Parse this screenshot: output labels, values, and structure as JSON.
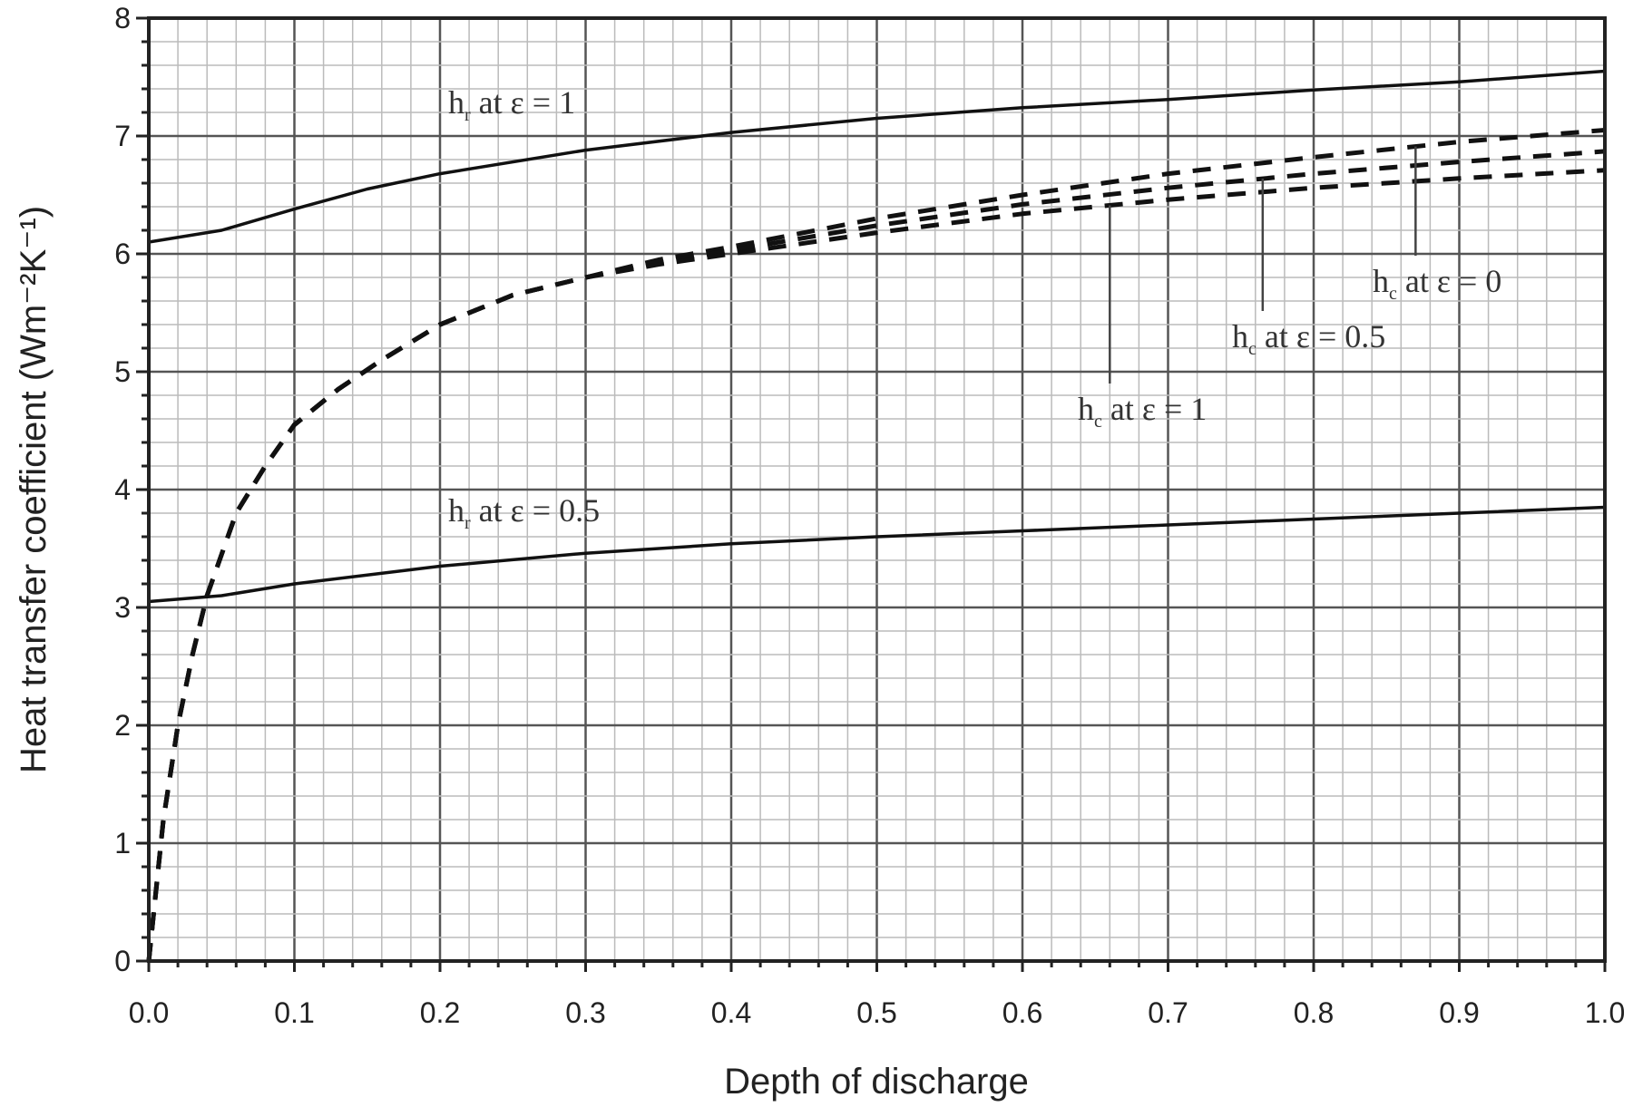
{
  "chart_data": {
    "type": "line",
    "title": "",
    "xlabel": "Depth of discharge",
    "ylabel": "Heat transfer coefficient (Wm⁻²K⁻¹)",
    "xlim": [
      0,
      1
    ],
    "ylim": [
      0,
      8
    ],
    "grid": true,
    "xticks": [
      "0.0",
      "0.1",
      "0.2",
      "0.3",
      "0.4",
      "0.5",
      "0.6",
      "0.7",
      "0.8",
      "0.9",
      "1.0"
    ],
    "yticks": [
      "0",
      "1",
      "2",
      "3",
      "4",
      "5",
      "6",
      "7",
      "8"
    ],
    "series": [
      {
        "name": "hr at ε = 1",
        "style": "solid",
        "x": [
          0,
          0.05,
          0.1,
          0.15,
          0.2,
          0.3,
          0.4,
          0.5,
          0.6,
          0.7,
          0.8,
          0.9,
          1.0
        ],
        "y": [
          6.1,
          6.2,
          6.38,
          6.55,
          6.68,
          6.88,
          7.03,
          7.15,
          7.24,
          7.31,
          7.39,
          7.46,
          7.55
        ]
      },
      {
        "name": "hr at ε = 0.5",
        "style": "solid",
        "x": [
          0,
          0.05,
          0.1,
          0.2,
          0.3,
          0.4,
          0.5,
          0.6,
          0.7,
          0.8,
          0.9,
          1.0
        ],
        "y": [
          3.05,
          3.1,
          3.2,
          3.35,
          3.46,
          3.54,
          3.6,
          3.65,
          3.7,
          3.75,
          3.8,
          3.85
        ]
      },
      {
        "name": "hc at ε = 0",
        "style": "dashed",
        "x": [
          0,
          0.005,
          0.01,
          0.02,
          0.03,
          0.04,
          0.06,
          0.08,
          0.1,
          0.13,
          0.16,
          0.2,
          0.25,
          0.3,
          0.35,
          0.4,
          0.5,
          0.6,
          0.7,
          0.8,
          0.9,
          1.0
        ],
        "y": [
          0,
          0.6,
          1.2,
          2.0,
          2.6,
          3.1,
          3.8,
          4.2,
          4.55,
          4.85,
          5.1,
          5.4,
          5.65,
          5.8,
          5.95,
          6.06,
          6.3,
          6.5,
          6.68,
          6.82,
          6.95,
          7.05
        ]
      },
      {
        "name": "hc at ε = 0.5",
        "style": "dashed",
        "x": [
          0,
          0.005,
          0.01,
          0.02,
          0.03,
          0.04,
          0.06,
          0.08,
          0.1,
          0.13,
          0.16,
          0.2,
          0.25,
          0.3,
          0.35,
          0.4,
          0.5,
          0.6,
          0.7,
          0.8,
          0.9,
          1.0
        ],
        "y": [
          0,
          0.6,
          1.2,
          2.0,
          2.6,
          3.1,
          3.8,
          4.2,
          4.55,
          4.85,
          5.1,
          5.4,
          5.65,
          5.8,
          5.93,
          6.03,
          6.24,
          6.42,
          6.56,
          6.68,
          6.78,
          6.87
        ]
      },
      {
        "name": "hc at ε = 1",
        "style": "dashed",
        "x": [
          0,
          0.005,
          0.01,
          0.02,
          0.03,
          0.04,
          0.06,
          0.08,
          0.1,
          0.13,
          0.16,
          0.2,
          0.25,
          0.3,
          0.35,
          0.4,
          0.5,
          0.6,
          0.7,
          0.8,
          0.9,
          1.0
        ],
        "y": [
          0,
          0.6,
          1.2,
          2.0,
          2.6,
          3.1,
          3.8,
          4.2,
          4.55,
          4.85,
          5.1,
          5.4,
          5.65,
          5.8,
          5.91,
          6.0,
          6.18,
          6.34,
          6.46,
          6.56,
          6.64,
          6.71
        ]
      }
    ],
    "annotations": [
      {
        "main": "h",
        "sub": "r",
        "rest": " at ε = 1",
        "series": 0
      },
      {
        "main": "h",
        "sub": "r",
        "rest": " at ε = 0.5",
        "series": 1
      },
      {
        "main": "h",
        "sub": "c",
        "rest": " at ε = 0",
        "series": 2,
        "pointer_x": 0.87
      },
      {
        "main": "h",
        "sub": "c",
        "rest": " at ε = 0.5",
        "series": 3,
        "pointer_x": 0.765
      },
      {
        "main": "h",
        "sub": "c",
        "rest": " at ε = 1",
        "series": 4,
        "pointer_x": 0.66
      }
    ]
  }
}
